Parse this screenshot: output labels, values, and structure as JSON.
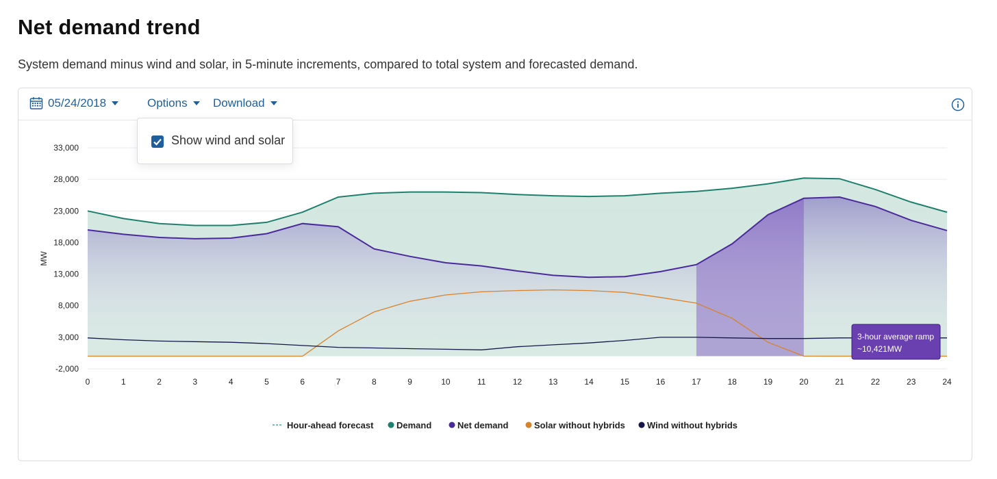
{
  "header": {
    "title": "Net demand trend",
    "subtitle": "System demand minus wind and solar, in 5-minute increments, compared to total system and forecasted demand."
  },
  "toolbar": {
    "date": "05/24/2018",
    "options_label": "Options",
    "download_label": "Download",
    "info_icon": "info-icon",
    "calendar_icon": "calendar-icon"
  },
  "options_menu": {
    "show_wind_solar_label": "Show wind and solar",
    "show_wind_solar_checked": true
  },
  "colors": {
    "demand": "#1f7f6f",
    "net_demand": "#4a2a9a",
    "solar": "#d9822b",
    "wind": "#15174a",
    "forecast": "#2a8fa0",
    "ramp": "#7b4fc1",
    "link": "#1f5f9e"
  },
  "chart_data": {
    "type": "area",
    "title": "Net demand trend",
    "ylabel": "MW",
    "xlabel": "",
    "ylim": [
      -2000,
      33000
    ],
    "xlim": [
      0,
      24
    ],
    "y_ticks": [
      "33,000",
      "28,000",
      "23,000",
      "18,000",
      "13,000",
      "8,000",
      "3,000",
      "-2,000"
    ],
    "y_tick_values": [
      33000,
      28000,
      23000,
      18000,
      13000,
      8000,
      3000,
      -2000
    ],
    "x_ticks": [
      "0",
      "1",
      "2",
      "3",
      "4",
      "5",
      "6",
      "7",
      "8",
      "9",
      "10",
      "11",
      "12",
      "13",
      "14",
      "15",
      "16",
      "17",
      "18",
      "19",
      "20",
      "21",
      "22",
      "23",
      "24"
    ],
    "x": [
      0,
      1,
      2,
      3,
      4,
      5,
      6,
      7,
      8,
      9,
      10,
      11,
      12,
      13,
      14,
      15,
      16,
      17,
      18,
      19,
      20,
      21,
      22,
      23,
      24
    ],
    "series": [
      {
        "name": "Demand",
        "values": [
          23000,
          21800,
          21000,
          20700,
          20700,
          21200,
          22800,
          25200,
          25800,
          26000,
          26000,
          25900,
          25600,
          25400,
          25300,
          25400,
          25800,
          26100,
          26600,
          27300,
          28200,
          28100,
          26400,
          24400,
          22800
        ]
      },
      {
        "name": "Net demand",
        "values": [
          20000,
          19300,
          18800,
          18600,
          18700,
          19400,
          21000,
          20500,
          17000,
          15800,
          14800,
          14300,
          13500,
          12800,
          12500,
          12600,
          13400,
          14500,
          17800,
          22400,
          25000,
          25200,
          23700,
          21500,
          19900
        ]
      },
      {
        "name": "Solar without hybrids",
        "values": [
          0,
          0,
          0,
          0,
          0,
          0,
          0,
          4000,
          7000,
          8700,
          9700,
          10200,
          10400,
          10500,
          10400,
          10100,
          9300,
          8400,
          6000,
          2200,
          20,
          0,
          0,
          0,
          0
        ]
      },
      {
        "name": "Wind without hybrids",
        "values": [
          2900,
          2600,
          2400,
          2300,
          2200,
          2000,
          1700,
          1400,
          1300,
          1200,
          1100,
          1000,
          1500,
          1800,
          2100,
          2500,
          3000,
          3000,
          2900,
          2800,
          2800,
          2900,
          2900,
          2900,
          2900
        ]
      },
      {
        "name": "Hour-ahead forecast",
        "values": [
          23000,
          21800,
          21000,
          20700,
          20700,
          21200,
          22800,
          25200,
          25800,
          26000,
          26000,
          25900,
          25600,
          25400,
          25300,
          25400,
          25800,
          26100,
          26600,
          27300,
          28200,
          28100,
          26400,
          24400,
          22800
        ]
      }
    ],
    "ramp_window": {
      "start": 17,
      "end": 20
    },
    "annotation": {
      "line1": "3-hour average ramp",
      "line2": "~10,421MW"
    },
    "legend": [
      {
        "label": "Hour-ahead forecast",
        "marker": "dash",
        "color": "#2a8fa0"
      },
      {
        "label": "Demand",
        "marker": "dot",
        "color": "#1f7f6f"
      },
      {
        "label": "Net demand",
        "marker": "dot",
        "color": "#4a2a9a"
      },
      {
        "label": "Solar without hybrids",
        "marker": "dot",
        "color": "#d9822b"
      },
      {
        "label": "Wind without hybrids",
        "marker": "dot",
        "color": "#15174a"
      }
    ],
    "legend_position": "bottom-center",
    "grid": true
  }
}
